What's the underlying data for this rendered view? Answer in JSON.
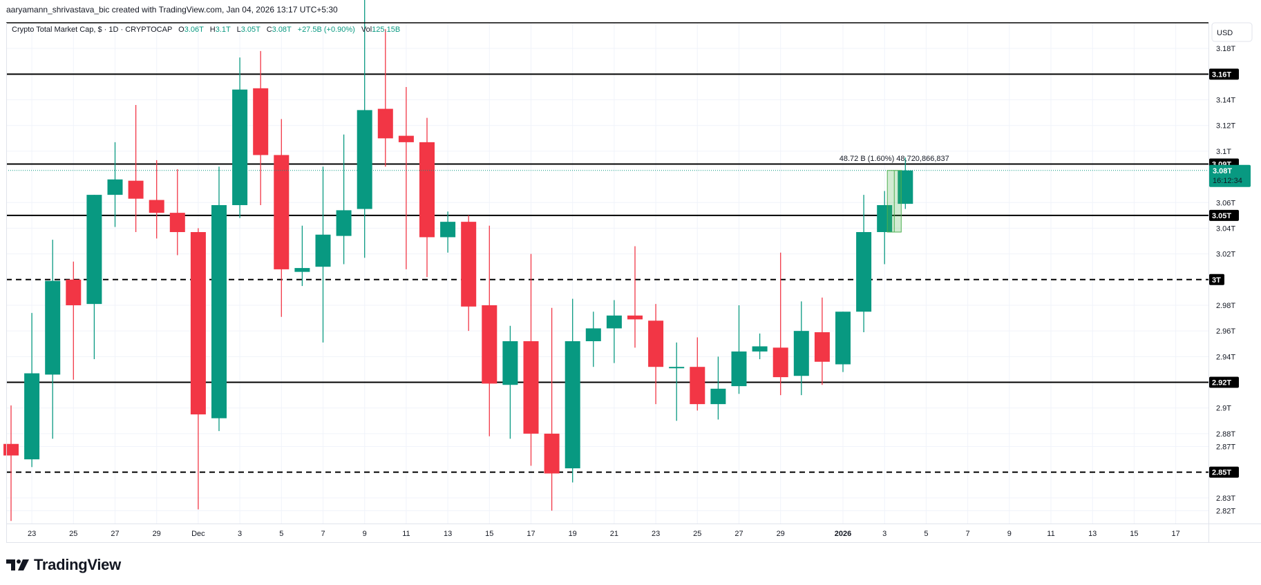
{
  "header": {
    "credit": "aaryamann_shrivastava_bic created with TradingView.com, Jan 04, 2026 13:17 UTC+5:30"
  },
  "legend": {
    "symbol": "Crypto Total Market Cap, $ · 1D · CRYPTOCAP",
    "o_label": "O",
    "o_value": "3.06T",
    "h_label": "H",
    "h_value": "3.1T",
    "l_label": "L",
    "l_value": "3.05T",
    "c_label": "C",
    "c_value": "3.08T",
    "change": "+27.5B (+0.90%)",
    "vol_label": "Vol",
    "vol_value": "125.15B"
  },
  "currency": "USD",
  "brand": {
    "name": "TradingView"
  },
  "colors": {
    "up": "#089981",
    "down": "#f23645",
    "level": "#000000",
    "grid": "#f0f3fa"
  },
  "chart_data": {
    "type": "candlestick",
    "title": "Crypto Total Market Cap, $ · 1D · CRYPTOCAP",
    "ylim": [
      2.81,
      3.2
    ],
    "y_ticks": [
      {
        "value": 3.18,
        "label": "3.18T"
      },
      {
        "value": 3.14,
        "label": "3.14T"
      },
      {
        "value": 3.12,
        "label": "3.12T"
      },
      {
        "value": 3.1,
        "label": "3.1T"
      },
      {
        "value": 3.06,
        "label": "3.06T"
      },
      {
        "value": 3.04,
        "label": "3.04T"
      },
      {
        "value": 3.02,
        "label": "3.02T"
      },
      {
        "value": 2.98,
        "label": "2.98T"
      },
      {
        "value": 2.96,
        "label": "2.96T"
      },
      {
        "value": 2.94,
        "label": "2.94T"
      },
      {
        "value": 2.9,
        "label": "2.9T"
      },
      {
        "value": 2.88,
        "label": "2.88T"
      },
      {
        "value": 2.87,
        "label": "2.87T"
      },
      {
        "value": 2.83,
        "label": "2.83T"
      },
      {
        "value": 2.82,
        "label": "2.82T"
      }
    ],
    "x_ticks": [
      {
        "index": 1,
        "label": "23"
      },
      {
        "index": 3,
        "label": "25"
      },
      {
        "index": 5,
        "label": "27"
      },
      {
        "index": 7,
        "label": "29"
      },
      {
        "index": 9,
        "label": "Dec",
        "bold": false
      },
      {
        "index": 11,
        "label": "3"
      },
      {
        "index": 13,
        "label": "5"
      },
      {
        "index": 15,
        "label": "7"
      },
      {
        "index": 17,
        "label": "9"
      },
      {
        "index": 19,
        "label": "11"
      },
      {
        "index": 21,
        "label": "13"
      },
      {
        "index": 23,
        "label": "15"
      },
      {
        "index": 25,
        "label": "17"
      },
      {
        "index": 27,
        "label": "19"
      },
      {
        "index": 29,
        "label": "21"
      },
      {
        "index": 31,
        "label": "23"
      },
      {
        "index": 33,
        "label": "25"
      },
      {
        "index": 35,
        "label": "27"
      },
      {
        "index": 37,
        "label": "29"
      },
      {
        "index": 40,
        "label": "2026",
        "bold": true
      },
      {
        "index": 42,
        "label": "3"
      },
      {
        "index": 44,
        "label": "5"
      },
      {
        "index": 46,
        "label": "7"
      },
      {
        "index": 48,
        "label": "9"
      },
      {
        "index": 50,
        "label": "11"
      },
      {
        "index": 52,
        "label": "13"
      },
      {
        "index": 54,
        "label": "15"
      },
      {
        "index": 56,
        "label": "17"
      }
    ],
    "candles": [
      {
        "o": 2.872,
        "h": 2.902,
        "l": 2.812,
        "c": 2.863
      },
      {
        "o": 2.86,
        "h": 2.974,
        "l": 2.854,
        "c": 2.927
      },
      {
        "o": 2.926,
        "h": 3.031,
        "l": 2.876,
        "c": 2.999
      },
      {
        "o": 3.0,
        "h": 3.014,
        "l": 2.922,
        "c": 2.98
      },
      {
        "o": 2.981,
        "h": 3.066,
        "l": 2.938,
        "c": 3.066
      },
      {
        "o": 3.066,
        "h": 3.107,
        "l": 3.041,
        "c": 3.078
      },
      {
        "o": 3.077,
        "h": 3.136,
        "l": 3.037,
        "c": 3.063
      },
      {
        "o": 3.062,
        "h": 3.093,
        "l": 3.032,
        "c": 3.052
      },
      {
        "o": 3.052,
        "h": 3.086,
        "l": 3.019,
        "c": 3.037
      },
      {
        "o": 3.037,
        "h": 3.04,
        "l": 2.821,
        "c": 2.895
      },
      {
        "o": 2.892,
        "h": 3.088,
        "l": 2.882,
        "c": 3.058
      },
      {
        "o": 3.058,
        "h": 3.173,
        "l": 3.048,
        "c": 3.148
      },
      {
        "o": 3.149,
        "h": 3.178,
        "l": 3.058,
        "c": 3.097
      },
      {
        "o": 3.097,
        "h": 3.125,
        "l": 2.971,
        "c": 3.008
      },
      {
        "o": 3.006,
        "h": 3.042,
        "l": 2.995,
        "c": 3.009
      },
      {
        "o": 3.01,
        "h": 3.088,
        "l": 2.951,
        "c": 3.035
      },
      {
        "o": 3.034,
        "h": 3.113,
        "l": 3.012,
        "c": 3.054
      },
      {
        "o": 3.055,
        "h": 3.219,
        "l": 3.017,
        "c": 3.132
      },
      {
        "o": 3.133,
        "h": 3.195,
        "l": 3.088,
        "c": 3.11
      },
      {
        "o": 3.112,
        "h": 3.15,
        "l": 3.008,
        "c": 3.107
      },
      {
        "o": 3.107,
        "h": 3.126,
        "l": 3.002,
        "c": 3.033
      },
      {
        "o": 3.033,
        "h": 3.053,
        "l": 3.021,
        "c": 3.045
      },
      {
        "o": 3.045,
        "h": 3.05,
        "l": 2.96,
        "c": 2.979
      },
      {
        "o": 2.98,
        "h": 3.042,
        "l": 2.878,
        "c": 2.919
      },
      {
        "o": 2.918,
        "h": 2.964,
        "l": 2.876,
        "c": 2.952
      },
      {
        "o": 2.952,
        "h": 3.02,
        "l": 2.855,
        "c": 2.88
      },
      {
        "o": 2.88,
        "h": 2.978,
        "l": 2.82,
        "c": 2.849
      },
      {
        "o": 2.853,
        "h": 2.985,
        "l": 2.842,
        "c": 2.952
      },
      {
        "o": 2.952,
        "h": 2.975,
        "l": 2.932,
        "c": 2.962
      },
      {
        "o": 2.962,
        "h": 2.984,
        "l": 2.935,
        "c": 2.972
      },
      {
        "o": 2.972,
        "h": 3.026,
        "l": 2.947,
        "c": 2.969
      },
      {
        "o": 2.968,
        "h": 2.981,
        "l": 2.903,
        "c": 2.932
      },
      {
        "o": 2.932,
        "h": 2.951,
        "l": 2.89,
        "c": 2.932
      },
      {
        "o": 2.932,
        "h": 2.955,
        "l": 2.898,
        "c": 2.903
      },
      {
        "o": 2.903,
        "h": 2.94,
        "l": 2.891,
        "c": 2.915
      },
      {
        "o": 2.917,
        "h": 2.98,
        "l": 2.911,
        "c": 2.944
      },
      {
        "o": 2.944,
        "h": 2.958,
        "l": 2.938,
        "c": 2.948
      },
      {
        "o": 2.947,
        "h": 3.021,
        "l": 2.91,
        "c": 2.924
      },
      {
        "o": 2.925,
        "h": 2.983,
        "l": 2.91,
        "c": 2.96
      },
      {
        "o": 2.959,
        "h": 2.986,
        "l": 2.918,
        "c": 2.936
      },
      {
        "o": 2.934,
        "h": 2.975,
        "l": 2.928,
        "c": 2.975
      },
      {
        "o": 2.975,
        "h": 3.066,
        "l": 2.959,
        "c": 3.037
      },
      {
        "o": 3.037,
        "h": 3.069,
        "l": 3.012,
        "c": 3.058
      },
      {
        "o": 3.059,
        "h": 3.095,
        "l": 3.055,
        "c": 3.085
      }
    ],
    "levels": [
      {
        "value": 3.16,
        "label": "3.16T",
        "style": "solid"
      },
      {
        "value": 3.09,
        "label": "3.09T",
        "style": "solid"
      },
      {
        "value": 3.05,
        "label": "3.05T",
        "style": "solid"
      },
      {
        "value": 3.0,
        "label": "3T",
        "style": "dashed"
      },
      {
        "value": 2.92,
        "label": "2.92T",
        "style": "solid"
      },
      {
        "value": 2.85,
        "label": "2.85T",
        "style": "dashed"
      }
    ],
    "current_price": {
      "value": 3.085,
      "label": "3.08T",
      "countdown": "16:12:34"
    },
    "measurement": {
      "text": "48.72 B (1.60%) 48,720,866,837",
      "from_index": 42,
      "to_index": 43,
      "low": 3.037,
      "high": 3.085
    }
  }
}
